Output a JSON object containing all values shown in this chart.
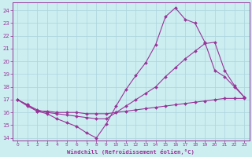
{
  "xlabel": "Windchill (Refroidissement éolien,°C)",
  "bg_color": "#cceef0",
  "line_color": "#993399",
  "grid_color": "#aad4dc",
  "xlim": [
    -0.5,
    23.5
  ],
  "ylim": [
    13.8,
    24.6
  ],
  "yticks": [
    14,
    15,
    16,
    17,
    18,
    19,
    20,
    21,
    22,
    23,
    24
  ],
  "xticks": [
    0,
    1,
    2,
    3,
    4,
    5,
    6,
    7,
    8,
    9,
    10,
    11,
    12,
    13,
    14,
    15,
    16,
    17,
    18,
    19,
    20,
    21,
    22,
    23
  ],
  "line1_x": [
    0,
    1,
    2,
    3,
    4,
    5,
    6,
    7,
    8,
    9,
    10,
    11,
    12,
    13,
    14,
    15,
    16,
    17,
    18,
    19,
    20,
    21,
    22,
    23
  ],
  "line1_y": [
    17.0,
    16.6,
    16.1,
    15.9,
    15.5,
    15.2,
    14.9,
    14.4,
    14.0,
    15.1,
    16.5,
    17.8,
    18.9,
    19.9,
    21.3,
    23.5,
    24.2,
    23.3,
    23.0,
    21.5,
    19.3,
    18.8,
    18.0,
    17.2
  ],
  "line2_x": [
    0,
    1,
    2,
    3,
    4,
    5,
    6,
    7,
    8,
    9,
    10,
    11,
    12,
    13,
    14,
    15,
    16,
    17,
    18,
    19,
    20,
    21,
    22,
    23
  ],
  "line2_y": [
    17.0,
    16.6,
    16.2,
    16.0,
    15.9,
    15.8,
    15.7,
    15.6,
    15.5,
    15.5,
    16.0,
    16.5,
    17.0,
    17.5,
    18.0,
    18.8,
    19.5,
    20.2,
    20.8,
    21.4,
    21.5,
    19.3,
    18.1,
    17.2
  ],
  "line3_x": [
    0,
    1,
    2,
    3,
    4,
    5,
    6,
    7,
    8,
    9,
    10,
    11,
    12,
    13,
    14,
    15,
    16,
    17,
    18,
    19,
    20,
    21,
    22,
    23
  ],
  "line3_y": [
    17.0,
    16.5,
    16.1,
    16.1,
    16.0,
    16.0,
    16.0,
    15.9,
    15.9,
    15.9,
    16.0,
    16.1,
    16.2,
    16.3,
    16.4,
    16.5,
    16.6,
    16.7,
    16.8,
    16.9,
    17.0,
    17.1,
    17.1,
    17.1
  ]
}
